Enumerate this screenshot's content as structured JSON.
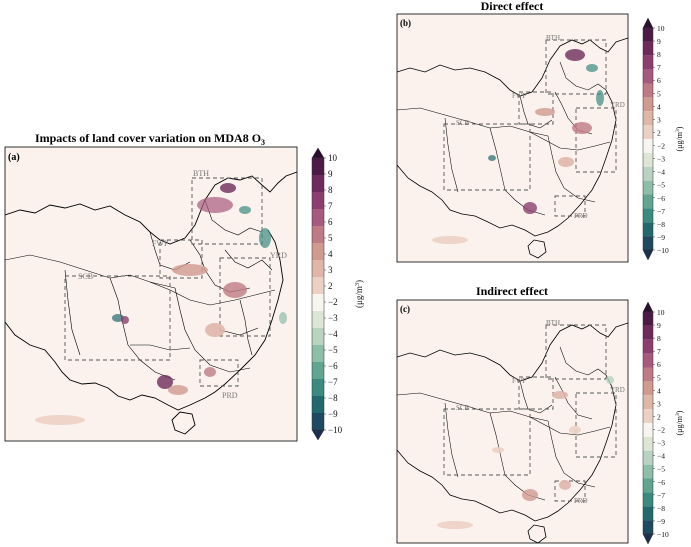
{
  "panels": [
    {
      "id": "a",
      "label": "(a)",
      "title": "Impacts of land cover variation on MDA8 O",
      "title_sub": "3",
      "regions": [
        "BTH",
        "FWP",
        "SCB",
        "YRD",
        "PRD"
      ]
    },
    {
      "id": "b",
      "label": "(b)",
      "title": "Direct effect",
      "title_sub": "",
      "regions": [
        "BTH",
        "FWP",
        "SCB",
        "YRD",
        "PRD"
      ]
    },
    {
      "id": "c",
      "label": "(c)",
      "title": "Indirect effect",
      "title_sub": "",
      "regions": [
        "BTH",
        "FWP",
        "SCB",
        "YRD",
        "PRD"
      ]
    }
  ],
  "colorbar": {
    "ticks": [
      "10",
      "9",
      "8",
      "7",
      "6",
      "5",
      "4",
      "3",
      "2",
      "−2",
      "−3",
      "−4",
      "−5",
      "−6",
      "−7",
      "−8",
      "−9",
      "−10"
    ],
    "colors": [
      "#2b0f2e",
      "#4d1a45",
      "#6e2a5a",
      "#8c3f6e",
      "#a85a7e",
      "#bf7a85",
      "#d19a90",
      "#dfb6a8",
      "#ecd0c4",
      "#f8f4f0",
      "#dde6d2",
      "#b8d3bf",
      "#8dbea8",
      "#5fa590",
      "#3a8a80",
      "#22696e",
      "#1d4a60",
      "#1a2e4f"
    ],
    "unit_a": "(μg/m",
    "unit_b": "3",
    "unit_c": ")"
  },
  "colors": {
    "background": "#fbf2ed",
    "border": "#000000",
    "province": "#000000",
    "dashed": "#555555"
  }
}
